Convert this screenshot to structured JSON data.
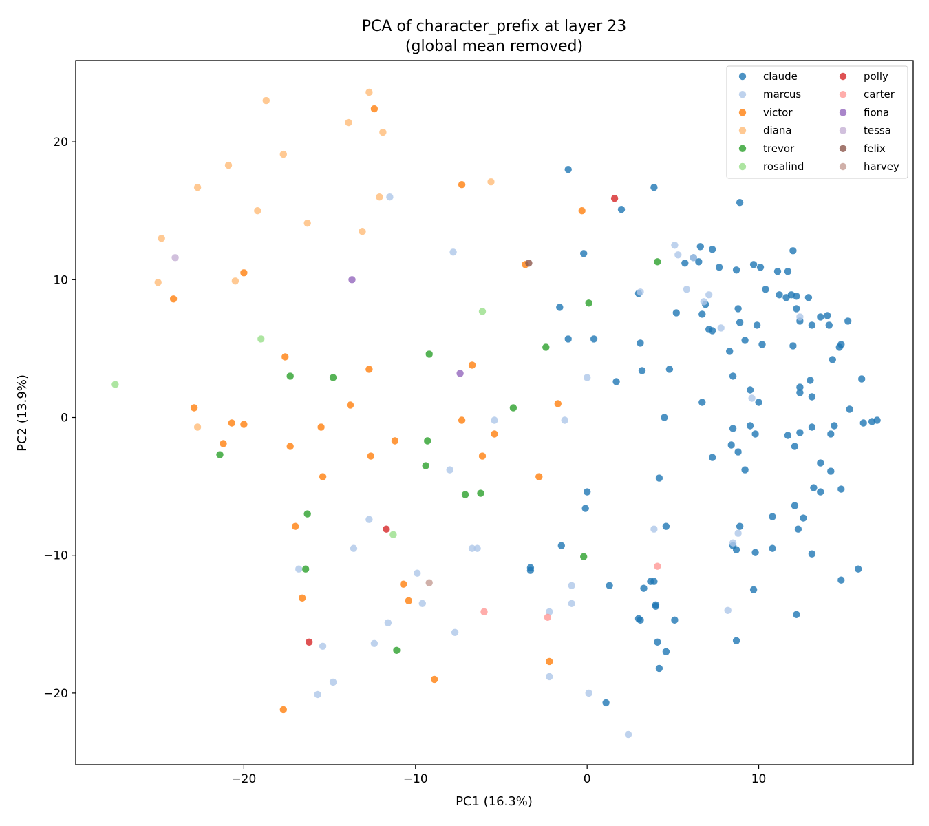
{
  "chart_data": {
    "type": "scatter",
    "title": [
      "PCA of character_prefix at layer 23",
      "(global mean removed)"
    ],
    "xlabel": "PC1 (16.3%)",
    "ylabel": "PC2 (13.9%)",
    "xlim": [
      -29.8,
      19.0
    ],
    "ylim": [
      -25.2,
      25.9
    ],
    "xticks": [
      -20,
      -10,
      0,
      10
    ],
    "yticks": [
      -20,
      -10,
      0,
      10,
      20
    ],
    "xtick_labels": [
      "−20",
      "−10",
      "0",
      "10"
    ],
    "ytick_labels": [
      "−20",
      "−10",
      "0",
      "10",
      "20"
    ],
    "grid": false,
    "legend": {
      "location": "upper right",
      "columns": 2
    },
    "series": [
      {
        "name": "claude",
        "color": "#1f77b4",
        "points": [
          [
            -1.1,
            18.0
          ],
          [
            3.9,
            16.7
          ],
          [
            8.9,
            15.6
          ],
          [
            2.0,
            15.1
          ],
          [
            -0.2,
            11.9
          ],
          [
            6.6,
            12.4
          ],
          [
            7.3,
            12.2
          ],
          [
            12.0,
            12.1
          ],
          [
            5.7,
            11.2
          ],
          [
            6.2,
            11.6
          ],
          [
            6.5,
            11.3
          ],
          [
            7.7,
            10.9
          ],
          [
            8.7,
            10.7
          ],
          [
            9.7,
            11.1
          ],
          [
            10.1,
            10.9
          ],
          [
            11.1,
            10.6
          ],
          [
            11.7,
            10.6
          ],
          [
            10.4,
            9.3
          ],
          [
            11.2,
            8.9
          ],
          [
            11.6,
            8.7
          ],
          [
            11.9,
            8.9
          ],
          [
            12.2,
            8.8
          ],
          [
            12.9,
            8.7
          ],
          [
            3.0,
            9.0
          ],
          [
            6.9,
            8.2
          ],
          [
            8.8,
            7.9
          ],
          [
            12.2,
            7.9
          ],
          [
            6.7,
            7.5
          ],
          [
            5.2,
            7.6
          ],
          [
            8.9,
            6.9
          ],
          [
            9.9,
            6.7
          ],
          [
            12.4,
            7.0
          ],
          [
            13.1,
            6.7
          ],
          [
            13.6,
            7.3
          ],
          [
            14.0,
            7.4
          ],
          [
            14.1,
            6.7
          ],
          [
            15.2,
            7.0
          ],
          [
            7.1,
            6.4
          ],
          [
            7.3,
            6.3
          ],
          [
            8.3,
            4.8
          ],
          [
            9.2,
            5.6
          ],
          [
            10.2,
            5.3
          ],
          [
            12.0,
            5.2
          ],
          [
            14.7,
            5.1
          ],
          [
            14.8,
            5.3
          ],
          [
            14.3,
            4.2
          ],
          [
            -1.6,
            8.0
          ],
          [
            -1.1,
            5.7
          ],
          [
            0.4,
            5.7
          ],
          [
            3.1,
            5.4
          ],
          [
            3.2,
            3.4
          ],
          [
            4.8,
            3.5
          ],
          [
            1.7,
            2.6
          ],
          [
            8.5,
            3.0
          ],
          [
            9.5,
            2.0
          ],
          [
            12.4,
            2.2
          ],
          [
            12.4,
            1.8
          ],
          [
            13.0,
            2.7
          ],
          [
            13.1,
            1.5
          ],
          [
            16.0,
            2.8
          ],
          [
            6.7,
            1.1
          ],
          [
            10.0,
            1.1
          ],
          [
            15.3,
            0.6
          ],
          [
            4.5,
            0.0
          ],
          [
            8.5,
            -0.8
          ],
          [
            9.5,
            -0.6
          ],
          [
            9.8,
            -1.2
          ],
          [
            11.7,
            -1.3
          ],
          [
            12.4,
            -1.1
          ],
          [
            13.1,
            -0.7
          ],
          [
            14.4,
            -0.6
          ],
          [
            14.2,
            -1.2
          ],
          [
            16.1,
            -0.4
          ],
          [
            16.6,
            -0.3
          ],
          [
            16.9,
            -0.2
          ],
          [
            8.4,
            -2.0
          ],
          [
            8.8,
            -2.5
          ],
          [
            7.3,
            -2.9
          ],
          [
            12.1,
            -2.1
          ],
          [
            13.6,
            -3.3
          ],
          [
            14.2,
            -3.9
          ],
          [
            9.2,
            -3.8
          ],
          [
            4.2,
            -4.4
          ],
          [
            13.2,
            -5.1
          ],
          [
            13.6,
            -5.4
          ],
          [
            14.8,
            -5.2
          ],
          [
            0.0,
            -5.4
          ],
          [
            -0.1,
            -6.6
          ],
          [
            12.1,
            -6.4
          ],
          [
            12.6,
            -7.3
          ],
          [
            10.8,
            -7.2
          ],
          [
            4.6,
            -7.9
          ],
          [
            12.3,
            -8.1
          ],
          [
            8.9,
            -7.9
          ],
          [
            -1.5,
            -9.3
          ],
          [
            8.5,
            -9.3
          ],
          [
            8.7,
            -9.6
          ],
          [
            9.8,
            -9.8
          ],
          [
            10.8,
            -9.5
          ],
          [
            13.1,
            -9.9
          ],
          [
            -3.3,
            -10.9
          ],
          [
            -3.3,
            -11.1
          ],
          [
            3.7,
            -11.9
          ],
          [
            3.9,
            -11.9
          ],
          [
            15.8,
            -11.0
          ],
          [
            14.8,
            -11.8
          ],
          [
            1.3,
            -12.2
          ],
          [
            3.3,
            -12.4
          ],
          [
            9.7,
            -12.5
          ],
          [
            4.0,
            -13.6
          ],
          [
            4.0,
            -13.7
          ],
          [
            12.2,
            -14.3
          ],
          [
            3.0,
            -14.6
          ],
          [
            3.1,
            -14.7
          ],
          [
            5.1,
            -14.7
          ],
          [
            8.7,
            -16.2
          ],
          [
            4.1,
            -16.3
          ],
          [
            4.6,
            -17.0
          ],
          [
            4.2,
            -18.2
          ],
          [
            1.1,
            -20.7
          ]
        ]
      },
      {
        "name": "marcus",
        "color": "#aec7e8",
        "points": [
          [
            -11.5,
            16.0
          ],
          [
            5.1,
            12.5
          ],
          [
            5.3,
            11.8
          ],
          [
            6.2,
            11.6
          ],
          [
            -7.8,
            12.0
          ],
          [
            3.1,
            9.1
          ],
          [
            5.8,
            9.3
          ],
          [
            7.1,
            8.9
          ],
          [
            6.8,
            8.4
          ],
          [
            12.4,
            7.3
          ],
          [
            7.8,
            6.5
          ],
          [
            0.0,
            2.9
          ],
          [
            9.6,
            1.4
          ],
          [
            -5.4,
            -0.2
          ],
          [
            -1.3,
            -0.2
          ],
          [
            -8.0,
            -3.8
          ],
          [
            -12.7,
            -7.4
          ],
          [
            3.9,
            -8.1
          ],
          [
            8.8,
            -8.4
          ],
          [
            8.5,
            -9.1
          ],
          [
            -13.6,
            -9.5
          ],
          [
            -6.7,
            -9.5
          ],
          [
            -6.4,
            -9.5
          ],
          [
            -16.8,
            -11.0
          ],
          [
            -9.9,
            -11.3
          ],
          [
            -0.9,
            -12.2
          ],
          [
            -9.6,
            -13.5
          ],
          [
            -0.9,
            -13.5
          ],
          [
            -2.2,
            -14.1
          ],
          [
            8.2,
            -14.0
          ],
          [
            -11.6,
            -14.9
          ],
          [
            -7.7,
            -15.6
          ],
          [
            -15.4,
            -16.6
          ],
          [
            -12.4,
            -16.4
          ],
          [
            -2.2,
            -18.8
          ],
          [
            -14.8,
            -19.2
          ],
          [
            -15.7,
            -20.1
          ],
          [
            0.1,
            -20.0
          ],
          [
            2.4,
            -23.0
          ]
        ]
      },
      {
        "name": "victor",
        "color": "#ff7f0e",
        "points": [
          [
            -12.4,
            22.4
          ],
          [
            -7.3,
            16.9
          ],
          [
            -0.3,
            15.0
          ],
          [
            -3.6,
            11.1
          ],
          [
            -20.0,
            10.5
          ],
          [
            -24.1,
            8.6
          ],
          [
            -17.6,
            4.4
          ],
          [
            -12.7,
            3.5
          ],
          [
            -6.7,
            3.8
          ],
          [
            -22.9,
            0.7
          ],
          [
            -13.8,
            0.9
          ],
          [
            -1.7,
            1.0
          ],
          [
            -20.7,
            -0.4
          ],
          [
            -20.0,
            -0.5
          ],
          [
            -15.5,
            -0.7
          ],
          [
            -7.3,
            -0.2
          ],
          [
            -21.2,
            -1.9
          ],
          [
            -17.3,
            -2.1
          ],
          [
            -11.2,
            -1.7
          ],
          [
            -5.4,
            -1.2
          ],
          [
            -12.6,
            -2.8
          ],
          [
            -6.1,
            -2.8
          ],
          [
            -15.4,
            -4.3
          ],
          [
            -2.8,
            -4.3
          ],
          [
            -17.0,
            -7.9
          ],
          [
            -10.7,
            -12.1
          ],
          [
            -16.6,
            -13.1
          ],
          [
            -10.4,
            -13.3
          ],
          [
            -2.2,
            -17.7
          ],
          [
            -8.9,
            -19.0
          ],
          [
            -17.7,
            -21.2
          ]
        ]
      },
      {
        "name": "diana",
        "color": "#ffbb78",
        "points": [
          [
            -12.7,
            23.6
          ],
          [
            -18.7,
            23.0
          ],
          [
            -13.9,
            21.4
          ],
          [
            -11.9,
            20.7
          ],
          [
            -17.7,
            19.1
          ],
          [
            -20.9,
            18.3
          ],
          [
            -22.7,
            16.7
          ],
          [
            -5.6,
            17.1
          ],
          [
            -12.1,
            16.0
          ],
          [
            -19.2,
            15.0
          ],
          [
            -16.3,
            14.1
          ],
          [
            -13.1,
            13.5
          ],
          [
            -24.8,
            13.0
          ],
          [
            -25.0,
            9.8
          ],
          [
            -20.5,
            9.9
          ],
          [
            -22.7,
            -0.7
          ]
        ]
      },
      {
        "name": "trevor",
        "color": "#2ca02c",
        "points": [
          [
            4.1,
            11.3
          ],
          [
            0.1,
            8.3
          ],
          [
            -2.4,
            5.1
          ],
          [
            -9.2,
            4.6
          ],
          [
            -17.3,
            3.0
          ],
          [
            -14.8,
            2.9
          ],
          [
            -4.3,
            0.7
          ],
          [
            -21.4,
            -2.7
          ],
          [
            -9.3,
            -1.7
          ],
          [
            -9.4,
            -3.5
          ],
          [
            -7.1,
            -5.6
          ],
          [
            -6.2,
            -5.5
          ],
          [
            -16.3,
            -7.0
          ],
          [
            -0.2,
            -10.1
          ],
          [
            -16.4,
            -11.0
          ],
          [
            -11.1,
            -16.9
          ]
        ]
      },
      {
        "name": "rosalind",
        "color": "#98df8a",
        "points": [
          [
            -6.1,
            7.7
          ],
          [
            -19.0,
            5.7
          ],
          [
            -27.5,
            2.4
          ],
          [
            -11.3,
            -8.5
          ]
        ]
      },
      {
        "name": "polly",
        "color": "#d62728",
        "points": [
          [
            1.6,
            15.9
          ],
          [
            -11.7,
            -8.1
          ],
          [
            -16.2,
            -16.3
          ]
        ]
      },
      {
        "name": "carter",
        "color": "#ff9896",
        "points": [
          [
            4.1,
            -10.8
          ],
          [
            -6.0,
            -14.1
          ],
          [
            -2.3,
            -14.5
          ]
        ]
      },
      {
        "name": "fiona",
        "color": "#9467bd",
        "points": [
          [
            -13.7,
            10.0
          ],
          [
            -7.4,
            3.2
          ]
        ]
      },
      {
        "name": "tessa",
        "color": "#c5b0d5",
        "points": [
          [
            -24.0,
            11.6
          ]
        ]
      },
      {
        "name": "felix",
        "color": "#8c564b",
        "points": [
          [
            -3.4,
            11.2
          ]
        ]
      },
      {
        "name": "harvey",
        "color": "#c49c94",
        "points": [
          [
            -9.2,
            -12.0
          ]
        ]
      }
    ]
  }
}
